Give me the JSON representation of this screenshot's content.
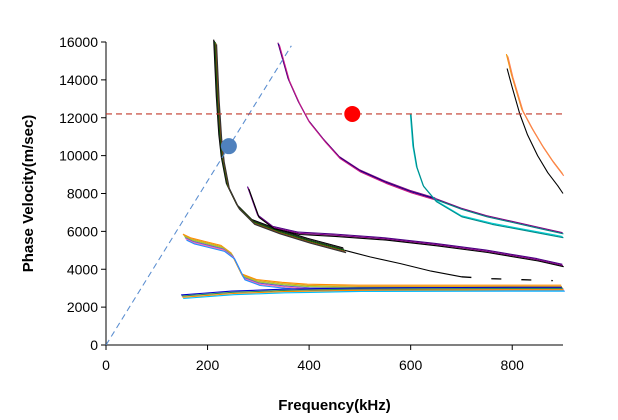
{
  "chart_data": {
    "type": "line",
    "title": "",
    "xlabel": "Frequency(kHz)",
    "ylabel": "Phase Velocity(m/sec)",
    "xlim": [
      0,
      900
    ],
    "ylim": [
      0,
      16000
    ],
    "xticks": [
      0,
      200,
      400,
      600,
      800
    ],
    "yticks": [
      0,
      2000,
      4000,
      6000,
      8000,
      10000,
      12000,
      14000,
      16000
    ],
    "xtick_labels": [
      "0",
      "200",
      "400",
      "600",
      "800"
    ],
    "ytick_labels": [
      "0",
      "2000",
      "4000",
      "6000",
      "8000",
      "10000",
      "12000",
      "14000",
      "16000"
    ],
    "grid": false,
    "reference_lines": [
      {
        "name": "linear-reference",
        "color": "#5b8ed0",
        "style": "dashed",
        "points": [
          [
            0,
            0
          ],
          [
            365,
            15800
          ]
        ]
      },
      {
        "name": "velocity-threshold",
        "color": "#c0392b",
        "style": "dashed",
        "points": [
          [
            0,
            12200
          ],
          [
            900,
            12200
          ]
        ]
      }
    ],
    "markers": [
      {
        "name": "blue-intersection",
        "x": 242,
        "y": 10500,
        "color": "#4f81bd"
      },
      {
        "name": "red-intersection",
        "x": 485,
        "y": 12200,
        "color": "#ff0000"
      }
    ],
    "series": [
      {
        "name": "mode-1-bundle",
        "colors": [
          "#000000",
          "#222222",
          "#006400",
          "#8b4513",
          "#333333"
        ],
        "x": [
          215,
          220,
          225,
          230,
          240,
          260,
          290,
          340,
          400,
          470
        ],
        "y": [
          16000,
          13000,
          11000,
          9800,
          8400,
          7300,
          6500,
          6000,
          5500,
          5000
        ]
      },
      {
        "name": "mode-1-tail",
        "colors": [
          "#000000"
        ],
        "x": [
          470,
          520,
          580,
          640,
          700
        ],
        "y": [
          5000,
          4650,
          4300,
          3900,
          3600
        ]
      },
      {
        "name": "mode-1-dashes",
        "colors": [
          "#000000"
        ],
        "x": [
          700,
          760,
          820,
          880
        ],
        "y": [
          3600,
          3500,
          3450,
          3400
        ]
      },
      {
        "name": "mode-2-bundle",
        "colors": [
          "#800080",
          "#000080",
          "#c71585"
        ],
        "x": [
          340,
          360,
          380,
          400,
          430,
          460,
          500,
          550,
          600,
          650
        ],
        "y": [
          15900,
          14000,
          12800,
          11800,
          10800,
          9900,
          9200,
          8600,
          8100,
          7700
        ]
      },
      {
        "name": "mode-2-tail",
        "colors": [
          "#800080",
          "#008080"
        ],
        "x": [
          650,
          700,
          750,
          800,
          850,
          900
        ],
        "y": [
          7700,
          7200,
          6800,
          6500,
          6200,
          5900
        ]
      },
      {
        "name": "mode-3-bundle",
        "colors": [
          "#4b0082",
          "#800080",
          "#000000"
        ],
        "x": [
          280,
          300,
          330,
          380,
          450,
          550,
          650,
          750,
          850,
          900
        ],
        "y": [
          8300,
          6800,
          6200,
          5900,
          5800,
          5600,
          5300,
          4950,
          4500,
          4200
        ]
      },
      {
        "name": "mode-4-bundle",
        "colors": [
          "#00ced1",
          "#008b8b"
        ],
        "x": [
          600,
          605,
          612,
          625,
          650,
          700,
          760,
          820,
          880,
          900
        ],
        "y": [
          12200,
          10500,
          9400,
          8400,
          7600,
          6800,
          6400,
          6100,
          5800,
          5700
        ]
      },
      {
        "name": "mode-5-orange",
        "colors": [
          "#ff8c00",
          "#daa520",
          "#ff7f50"
        ],
        "x": [
          790,
          800,
          810,
          820,
          840,
          860,
          880,
          900
        ],
        "y": [
          15300,
          14200,
          13300,
          12400,
          11400,
          10500,
          9700,
          9000
        ]
      },
      {
        "name": "mode-5-black",
        "colors": [
          "#000000"
        ],
        "x": [
          790,
          800,
          815,
          830,
          850,
          870,
          890,
          900
        ],
        "y": [
          14600,
          13600,
          12200,
          11100,
          10000,
          9100,
          8400,
          8000
        ]
      },
      {
        "name": "mode-6-bundle",
        "colors": [
          "#ff8c00",
          "#daa520",
          "#9acd32",
          "#6a5acd",
          "#ff69b4",
          "#1e90ff"
        ],
        "x": [
          155,
          170,
          200,
          230,
          250,
          270,
          300,
          350,
          400,
          500,
          600,
          700,
          800,
          900
        ],
        "y": [
          5700,
          5500,
          5300,
          5100,
          4700,
          3600,
          3300,
          3150,
          3050,
          3000,
          3000,
          3000,
          3000,
          3000
        ]
      },
      {
        "name": "mode-7-bundle",
        "colors": [
          "#0000cd",
          "#2e8b57",
          "#ff8c00",
          "#00bfff"
        ],
        "x": [
          150,
          200,
          250,
          300,
          350,
          400,
          450,
          500,
          600,
          700,
          800,
          900
        ],
        "y": [
          2550,
          2650,
          2750,
          2800,
          2850,
          2870,
          2900,
          2920,
          2930,
          2940,
          2950,
          2950
        ]
      }
    ]
  }
}
